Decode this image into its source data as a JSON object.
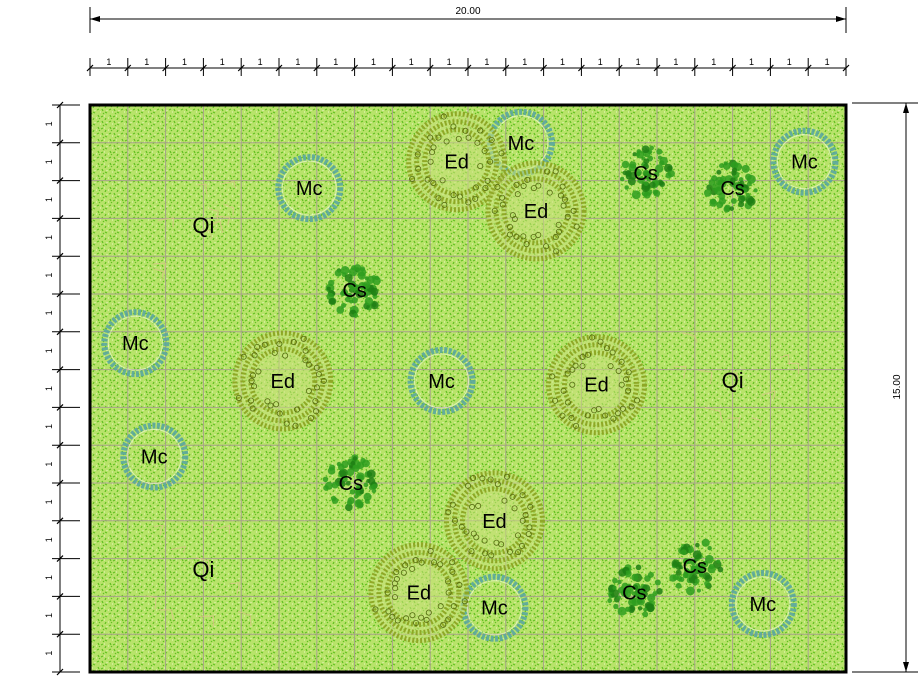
{
  "dimensions": {
    "total_width_label": "20.00",
    "total_height_label": "15.00",
    "module_label": "1",
    "columns": 20,
    "rows": 15
  },
  "colors": {
    "ground_fill": "#b8e36a",
    "ground_speckle": "#5fbf1e",
    "grid_line": "#a7a28a",
    "frame": "#000000",
    "mc_ring": "#5aa6a0",
    "ed_ring": "#8aa21e",
    "cs_fill": "#2e9e1e"
  },
  "plants": [
    {
      "code": "Qi",
      "type": "qi",
      "x": 3,
      "y": 3.2
    },
    {
      "code": "Qi",
      "type": "qi",
      "x": 17,
      "y": 7.3
    },
    {
      "code": "Qi",
      "type": "qi",
      "x": 3,
      "y": 12.3
    },
    {
      "code": "Mc",
      "type": "mc",
      "x": 5.8,
      "y": 2.2
    },
    {
      "code": "Mc",
      "type": "mc",
      "x": 11.4,
      "y": 1.0
    },
    {
      "code": "Mc",
      "type": "mc",
      "x": 18.9,
      "y": 1.5
    },
    {
      "code": "Mc",
      "type": "mc",
      "x": 1.2,
      "y": 6.3
    },
    {
      "code": "Mc",
      "type": "mc",
      "x": 9.3,
      "y": 7.3
    },
    {
      "code": "Mc",
      "type": "mc",
      "x": 1.7,
      "y": 9.3
    },
    {
      "code": "Mc",
      "type": "mc",
      "x": 10.7,
      "y": 13.3
    },
    {
      "code": "Mc",
      "type": "mc",
      "x": 17.8,
      "y": 13.2
    },
    {
      "code": "Ed",
      "type": "ed",
      "x": 9.7,
      "y": 1.5
    },
    {
      "code": "Ed",
      "type": "ed",
      "x": 11.8,
      "y": 2.8
    },
    {
      "code": "Ed",
      "type": "ed",
      "x": 5.1,
      "y": 7.3
    },
    {
      "code": "Ed",
      "type": "ed",
      "x": 13.4,
      "y": 7.4
    },
    {
      "code": "Ed",
      "type": "ed",
      "x": 10.7,
      "y": 11.0
    },
    {
      "code": "Ed",
      "type": "ed",
      "x": 8.7,
      "y": 12.9
    },
    {
      "code": "Cs",
      "type": "cs",
      "x": 14.7,
      "y": 1.8
    },
    {
      "code": "Cs",
      "type": "cs",
      "x": 17.0,
      "y": 2.2
    },
    {
      "code": "Cs",
      "type": "cs",
      "x": 7.0,
      "y": 4.9
    },
    {
      "code": "Cs",
      "type": "cs",
      "x": 6.9,
      "y": 10.0
    },
    {
      "code": "Cs",
      "type": "cs",
      "x": 16.0,
      "y": 12.2
    },
    {
      "code": "Cs",
      "type": "cs",
      "x": 14.4,
      "y": 12.9
    }
  ]
}
